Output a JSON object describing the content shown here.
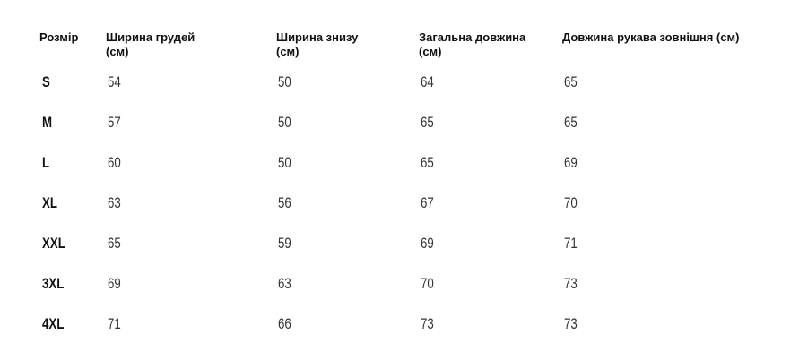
{
  "table": {
    "headers": [
      "Розмір",
      "Ширина грудей (см)",
      "Ширина знизу (см)",
      "Загальна довжина (см)",
      "Довжина рукава зовнішня (см)"
    ],
    "rows": [
      [
        "S",
        54,
        50,
        64,
        65
      ],
      [
        "M",
        57,
        50,
        65,
        65
      ],
      [
        "L",
        60,
        50,
        65,
        69
      ],
      [
        "XL",
        63,
        56,
        67,
        70
      ],
      [
        "XXL",
        65,
        59,
        69,
        71
      ],
      [
        "3XL",
        69,
        63,
        70,
        73
      ],
      [
        "4XL",
        71,
        66,
        73,
        73
      ]
    ]
  }
}
